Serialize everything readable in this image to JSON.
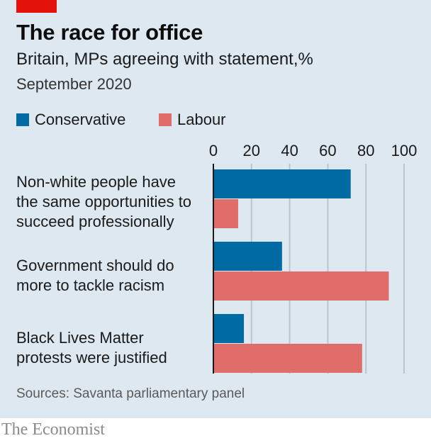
{
  "header": {
    "title": "The race for office",
    "subtitle": "Britain, MPs agreeing with statement,%",
    "date": "September 2020"
  },
  "legend": [
    {
      "label": "Conservative",
      "color": "#006ba2"
    },
    {
      "label": "Labour",
      "color": "#e06d6a"
    }
  ],
  "chart_data": {
    "type": "bar",
    "orientation": "horizontal",
    "title": "The race for office",
    "subtitle": "Britain, MPs agreeing with statement,%",
    "categories": [
      [
        "Non-white people have",
        "the same opportunities to",
        "succeed professionally"
      ],
      [
        "Government should do",
        "more to tackle racism"
      ],
      [
        "Black Lives Matter",
        "protests were justified"
      ]
    ],
    "series": [
      {
        "name": "Conservative",
        "color": "#006ba2",
        "values": [
          72,
          36,
          16
        ]
      },
      {
        "name": "Labour",
        "color": "#e06d6a",
        "values": [
          13,
          92,
          78
        ]
      }
    ],
    "xlim": [
      0,
      100
    ],
    "xticks": [
      "0",
      "20",
      "40",
      "60",
      "80",
      "100"
    ],
    "grid": true,
    "legend_position": "top-left"
  },
  "footer": {
    "source": "Sources: Savanta parliamentary panel",
    "brand": "The Economist"
  }
}
